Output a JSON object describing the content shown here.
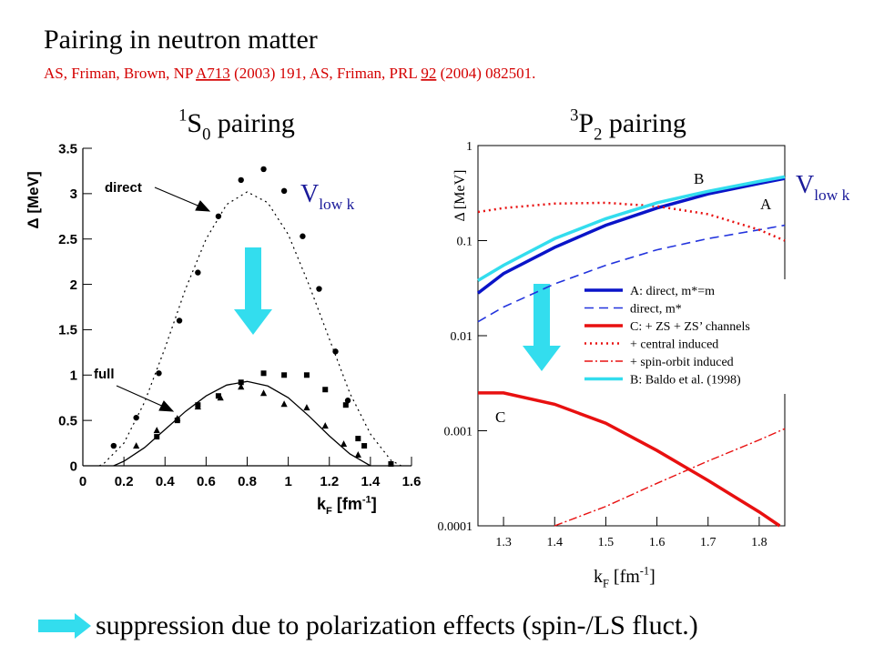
{
  "slide": {
    "title": "Pairing in neutron matter",
    "reference": [
      {
        "text": "AS, Friman, Brown, NP "
      },
      {
        "text": "A713",
        "underline": true
      },
      {
        "text": " (2003) 191, AS, Friman, PRL "
      },
      {
        "text": "92",
        "underline": true
      },
      {
        "text": " (2004) 082501."
      }
    ],
    "caption": "suppression due to polarization effects (spin-/LS fluct.)"
  },
  "chart_data": [
    {
      "type": "line",
      "title": [
        {
          "text": "1",
          "script": "sup"
        },
        {
          "text": "S"
        },
        {
          "text": "0",
          "script": "sub"
        },
        {
          "text": " pairing"
        }
      ],
      "y_label": [
        {
          "text": "Δ [MeV]"
        }
      ],
      "x_label": [
        {
          "text": "k"
        },
        {
          "text": "F",
          "script": "sub"
        },
        {
          "text": " [fm"
        },
        {
          "text": "-1",
          "script": "sup"
        },
        {
          "text": "]"
        }
      ],
      "xlim": [
        0,
        1.6
      ],
      "xticks": [
        0,
        0.2,
        0.4,
        0.6,
        0.8,
        1,
        1.2,
        1.4,
        1.6
      ],
      "ylim": [
        0,
        3.5
      ],
      "yticks": [
        0,
        0.5,
        1,
        1.5,
        2,
        2.5,
        3,
        3.5
      ],
      "annotations": [
        [
          {
            "text": "direct"
          }
        ],
        [
          {
            "text": "full"
          }
        ],
        [
          {
            "text": "V"
          },
          {
            "text": "low k",
            "script": "sub"
          }
        ]
      ],
      "series": [
        {
          "color": "#000000",
          "dash": "dotted",
          "width": 1.2,
          "x": [
            0.08,
            0.1,
            0.2,
            0.3,
            0.4,
            0.5,
            0.6,
            0.7,
            0.8,
            0.9,
            1.0,
            1.1,
            1.2,
            1.3,
            1.4,
            1.5,
            1.55
          ],
          "values": [
            0,
            0.02,
            0.25,
            0.7,
            1.3,
            1.95,
            2.5,
            2.88,
            3.02,
            2.9,
            2.55,
            2.0,
            1.4,
            0.8,
            0.35,
            0.06,
            0
          ]
        },
        {
          "color": "#000000",
          "dash": "solid",
          "width": 1.3,
          "x": [
            0.15,
            0.2,
            0.3,
            0.4,
            0.5,
            0.6,
            0.7,
            0.8,
            0.9,
            1.0,
            1.1,
            1.2,
            1.3,
            1.4
          ],
          "values": [
            0,
            0.05,
            0.2,
            0.4,
            0.6,
            0.77,
            0.89,
            0.93,
            0.88,
            0.75,
            0.55,
            0.33,
            0.13,
            0
          ]
        },
        {
          "color": "#000000",
          "marker": "circle",
          "x": [
            0.15,
            0.26,
            0.37,
            0.47,
            0.56,
            0.66,
            0.77,
            0.88,
            0.98,
            1.07,
            1.15,
            1.23,
            1.29
          ],
          "values": [
            0.22,
            0.53,
            1.02,
            1.6,
            2.13,
            2.75,
            3.15,
            3.27,
            3.03,
            2.53,
            1.95,
            1.26,
            0.72
          ]
        },
        {
          "color": "#000000",
          "marker": "square",
          "x": [
            0.36,
            0.46,
            0.56,
            0.66,
            0.77,
            0.88,
            0.98,
            1.09,
            1.18,
            1.28,
            1.34,
            1.37,
            1.5
          ],
          "values": [
            0.32,
            0.5,
            0.67,
            0.77,
            0.92,
            1.02,
            1.0,
            1.0,
            0.84,
            0.67,
            0.3,
            0.22,
            0.02
          ]
        },
        {
          "color": "#000000",
          "marker": "triangle",
          "x": [
            0.26,
            0.36,
            0.46,
            0.56,
            0.67,
            0.77,
            0.88,
            0.98,
            1.09,
            1.18,
            1.27,
            1.34
          ],
          "values": [
            0.22,
            0.39,
            0.52,
            0.65,
            0.75,
            0.87,
            0.8,
            0.68,
            0.64,
            0.44,
            0.24,
            0.12
          ]
        }
      ]
    },
    {
      "type": "line",
      "log_y": true,
      "legend": "right",
      "title": [
        {
          "text": "3",
          "script": "sup"
        },
        {
          "text": "P"
        },
        {
          "text": "2",
          "script": "sub"
        },
        {
          "text": " pairing"
        }
      ],
      "y_label": [
        {
          "text": "Δ [MeV]"
        }
      ],
      "x_label": [
        {
          "text": "k"
        },
        {
          "text": "F",
          "script": "sub"
        },
        {
          "text": " [fm"
        },
        {
          "text": "-1",
          "script": "sup"
        },
        {
          "text": "]"
        }
      ],
      "xlim": [
        1.25,
        1.85
      ],
      "xticks": [
        1.3,
        1.4,
        1.5,
        1.6,
        1.7,
        1.8
      ],
      "ylim": [
        0.0001,
        1
      ],
      "yticks": [
        0.0001,
        0.001,
        0.01,
        0.1,
        1
      ],
      "annotations": [
        [
          {
            "text": "B"
          }
        ],
        [
          {
            "text": "A"
          }
        ],
        [
          {
            "text": "C"
          }
        ],
        [
          {
            "text": "V"
          },
          {
            "text": "low k",
            "script": "sub"
          }
        ]
      ],
      "series": [
        {
          "name": "A: direct, m*=m",
          "color": "#0a14c8",
          "dash": "solid",
          "width": 3.5,
          "x": [
            1.25,
            1.3,
            1.4,
            1.5,
            1.6,
            1.7,
            1.8,
            1.85
          ],
          "values": [
            0.028,
            0.045,
            0.085,
            0.145,
            0.22,
            0.31,
            0.4,
            0.45
          ]
        },
        {
          "name": "direct, m*",
          "color": "#2233dd",
          "dash": "dashed",
          "width": 1.6,
          "x": [
            1.25,
            1.3,
            1.4,
            1.5,
            1.6,
            1.7,
            1.8,
            1.85
          ],
          "values": [
            0.014,
            0.02,
            0.035,
            0.055,
            0.08,
            0.105,
            0.13,
            0.145
          ]
        },
        {
          "name": "C: + ZS + ZS’ channels",
          "color": "#e81010",
          "dash": "solid",
          "width": 3.5,
          "x": [
            1.25,
            1.3,
            1.4,
            1.5,
            1.6,
            1.7,
            1.8,
            1.84
          ],
          "values": [
            0.0025,
            0.0025,
            0.0019,
            0.0012,
            0.00062,
            0.0003,
            0.00014,
            0.0001
          ]
        },
        {
          "name": "+ central induced",
          "color": "#e81010",
          "dash": "dotted",
          "width": 2.5,
          "x": [
            1.25,
            1.3,
            1.4,
            1.5,
            1.6,
            1.7,
            1.8,
            1.85
          ],
          "values": [
            0.2,
            0.22,
            0.245,
            0.25,
            0.23,
            0.19,
            0.13,
            0.1
          ]
        },
        {
          "name": "+ spin-orbit induced",
          "color": "#e81010",
          "dash": "dashdot",
          "width": 1.4,
          "x": [
            1.4,
            1.5,
            1.6,
            1.7,
            1.8,
            1.85
          ],
          "values": [
            0.0001,
            0.00016,
            0.00028,
            0.00048,
            0.0008,
            0.00105
          ]
        },
        {
          "name": "B: Baldo et al. (1998)",
          "color": "#33ddee",
          "dash": "solid",
          "width": 3.5,
          "x": [
            1.25,
            1.3,
            1.4,
            1.5,
            1.6,
            1.7,
            1.8,
            1.85
          ],
          "values": [
            0.038,
            0.055,
            0.105,
            0.17,
            0.25,
            0.33,
            0.42,
            0.47
          ]
        }
      ]
    }
  ]
}
